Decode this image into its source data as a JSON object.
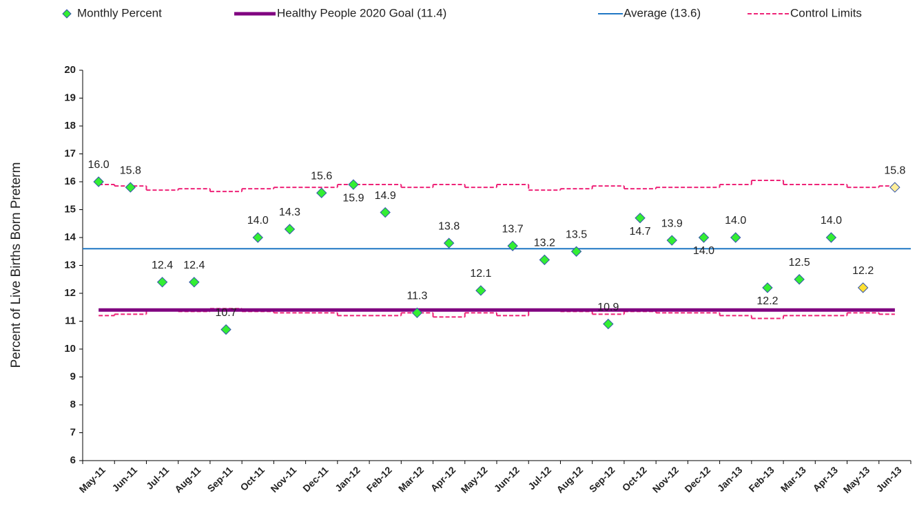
{
  "chart_data": {
    "type": "control",
    "y_label": "Percent of Live Births Born Preterm",
    "categories": [
      "May-11",
      "Jun-11",
      "Jul-11",
      "Aug-11",
      "Sep-11",
      "Oct-11",
      "Nov-11",
      "Dec-11",
      "Jan-12",
      "Feb-12",
      "Mar-12",
      "Apr-12",
      "May-12",
      "Jun-12",
      "Jul-12",
      "Aug-12",
      "Sep-12",
      "Oct-12",
      "Nov-12",
      "Dec-12",
      "Jan-13",
      "Feb-13",
      "Mar-13",
      "Apr-13",
      "May-13",
      "Jun-13"
    ],
    "series": [
      {
        "name": "Monthly Percent",
        "color": "#33ee33",
        "edge_color": "#3355aa",
        "values": [
          16.0,
          15.8,
          12.4,
          12.4,
          10.7,
          14.0,
          14.3,
          15.6,
          15.9,
          14.9,
          11.3,
          13.8,
          12.1,
          13.7,
          13.2,
          13.5,
          10.9,
          14.7,
          13.9,
          14.0,
          14.0,
          12.2,
          12.5,
          14.0,
          12.2,
          15.8
        ],
        "value_labels": [
          "16.0",
          "15.8",
          "12.4",
          "12.4",
          "10.7",
          "14.0",
          "14.3",
          "15.6",
          "15.9",
          "14.9",
          "11.3",
          "13.8",
          "12.1",
          "13.7",
          "13.2",
          "13.5",
          "10.9",
          "14.7",
          "13.9",
          "14.0",
          "14.0",
          "12.2",
          "12.5",
          "14.0",
          "12.2",
          "15.8"
        ],
        "colors": [
          "#33ee33",
          "#33ee33",
          "#33ee33",
          "#33ee33",
          "#33ee33",
          "#33ee33",
          "#33ee33",
          "#33ee33",
          "#33ee33",
          "#33ee33",
          "#33ee33",
          "#33ee33",
          "#33ee33",
          "#33ee33",
          "#33ee33",
          "#33ee33",
          "#33ee33",
          "#33ee33",
          "#33ee33",
          "#33ee33",
          "#33ee33",
          "#33ee33",
          "#33ee33",
          "#33ee33",
          "#ffe033",
          "#ffee99"
        ]
      }
    ],
    "goal": {
      "name": "Healthy People 2020 Goal (11.4)",
      "value": 11.4,
      "color": "#800080"
    },
    "average": {
      "name": "Average (13.6)",
      "value": 13.6,
      "color": "#1f77c4"
    },
    "control_limits": {
      "name": "Control Limits",
      "color": "#ee2277",
      "upper": [
        15.9,
        15.85,
        15.7,
        15.75,
        15.65,
        15.75,
        15.8,
        15.8,
        15.9,
        15.9,
        15.8,
        15.9,
        15.8,
        15.9,
        15.7,
        15.75,
        15.85,
        15.75,
        15.8,
        15.8,
        15.9,
        16.05,
        15.9,
        15.9,
        15.8,
        15.85
      ],
      "lower": [
        11.2,
        11.25,
        11.4,
        11.35,
        11.45,
        11.35,
        11.3,
        11.3,
        11.2,
        11.2,
        11.3,
        11.15,
        11.3,
        11.2,
        11.4,
        11.35,
        11.25,
        11.35,
        11.3,
        11.3,
        11.2,
        11.1,
        11.2,
        11.2,
        11.3,
        11.25
      ]
    },
    "ylim": [
      6,
      20
    ],
    "yticks": [
      6,
      7,
      8,
      9,
      10,
      11,
      12,
      13,
      14,
      15,
      16,
      17,
      18,
      19,
      20
    ]
  }
}
